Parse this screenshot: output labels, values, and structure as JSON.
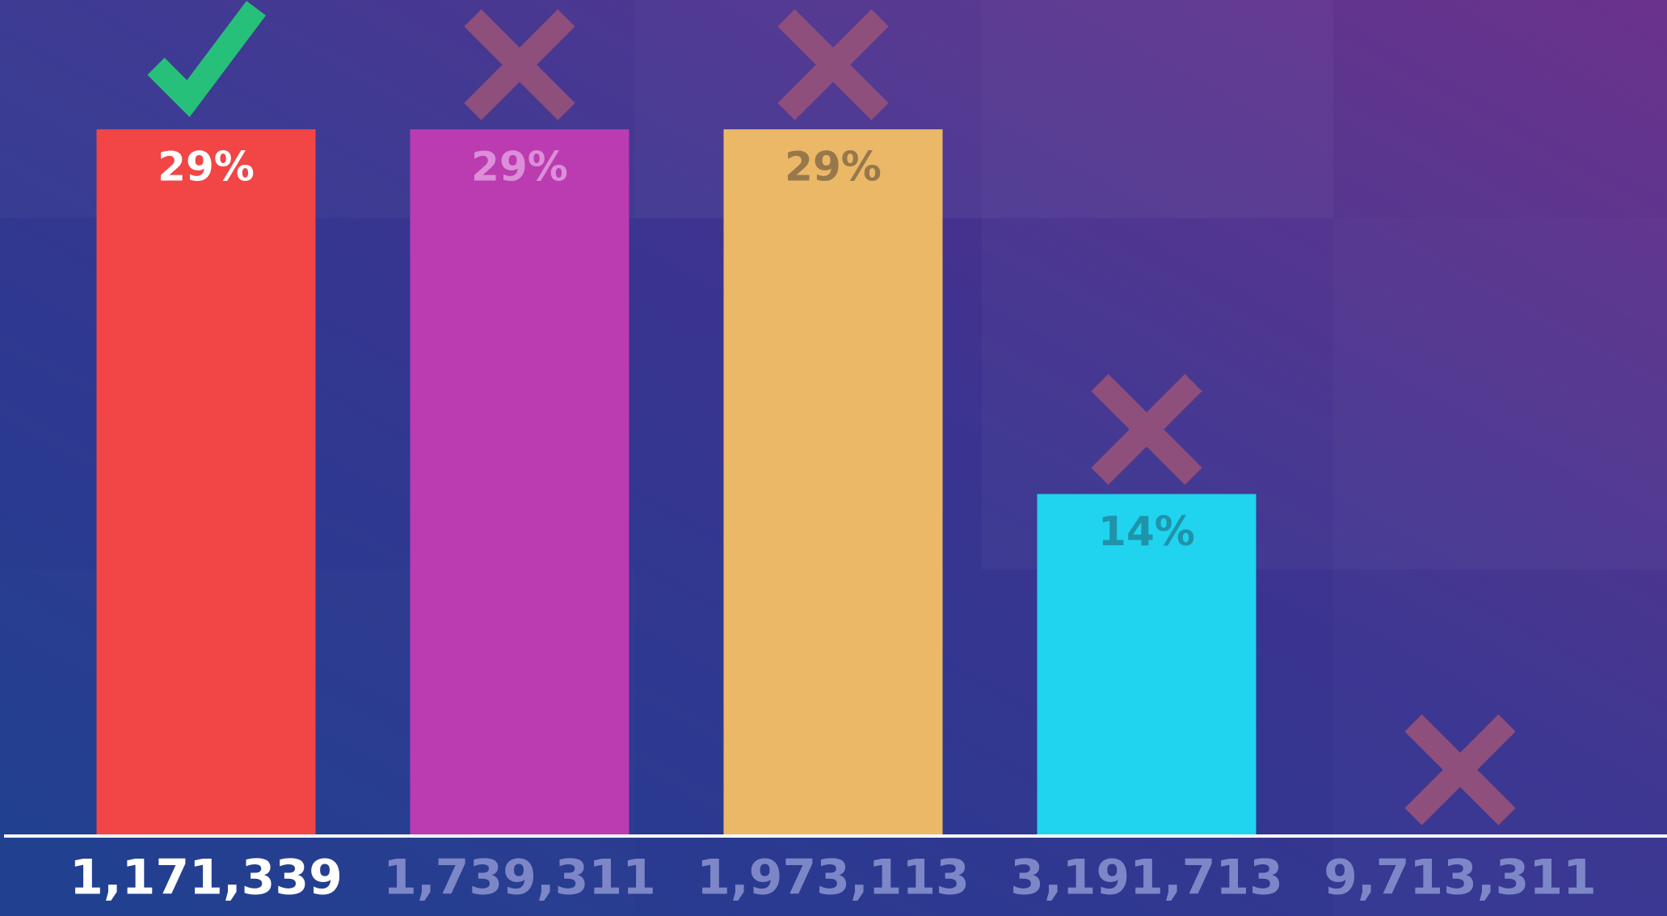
{
  "chart_data": {
    "type": "bar",
    "categories": [
      "1,171,339",
      "1,739,311",
      "1,973,113",
      "3,191,713",
      "9,713,311"
    ],
    "values": [
      29,
      29,
      29,
      14,
      0
    ],
    "value_labels": [
      "29%",
      "29%",
      "29%",
      "14%",
      null
    ],
    "colors": [
      "#f24545",
      "#bb3bb0",
      "#ebb868",
      "#20d3ef",
      "#20d3ef"
    ],
    "label_colors": [
      "#ffffff",
      "#dc8ed8",
      "#97784b",
      "#1f93aa",
      "#1f93aa"
    ],
    "correct": [
      true,
      false,
      false,
      false,
      false
    ],
    "ylim": [
      0,
      30
    ]
  }
}
